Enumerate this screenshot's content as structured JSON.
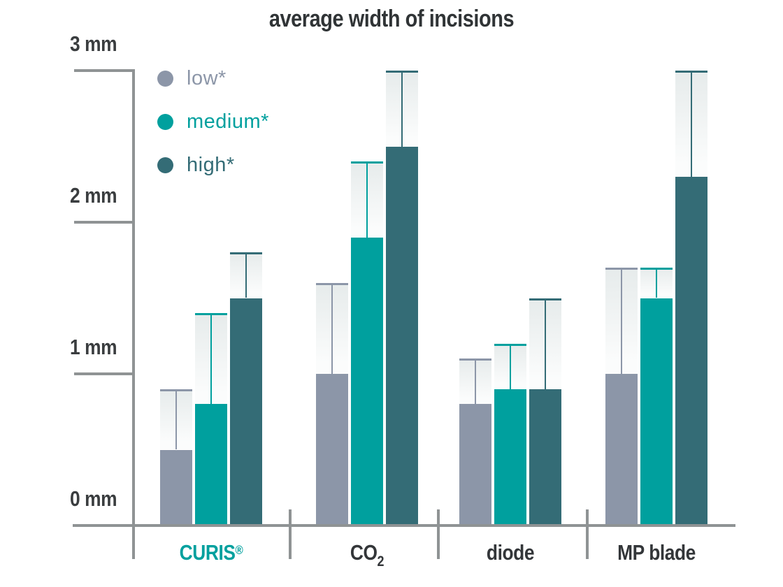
{
  "title": "average width of incisions",
  "chart_data": {
    "type": "bar",
    "title": "average width of incisions",
    "unit": "mm",
    "ylim": [
      0,
      3
    ],
    "yticks": [
      0,
      1,
      2,
      3
    ],
    "ytick_labels": [
      "0 mm",
      "1 mm",
      "2 mm",
      "3 mm"
    ],
    "grid": false,
    "legend_position": "top-left",
    "categories": [
      "CURIS®",
      "CO2",
      "diode",
      "MP blade"
    ],
    "series": [
      {
        "name": "low*",
        "color": "#8C96A8",
        "values": [
          0.5,
          1.0,
          0.8,
          1.0
        ],
        "whisker_top": [
          0.9,
          1.6,
          1.1,
          1.7
        ]
      },
      {
        "name": "medium*",
        "color": "#00A09E",
        "values": [
          0.8,
          1.9,
          0.9,
          1.5
        ],
        "whisker_top": [
          1.4,
          2.4,
          1.2,
          1.7
        ]
      },
      {
        "name": "high*",
        "color": "#346C76",
        "values": [
          1.5,
          2.5,
          0.9,
          2.3
        ],
        "whisker_top": [
          1.8,
          3.0,
          1.5,
          3.0
        ]
      }
    ]
  },
  "x_axis": {
    "groups": [
      {
        "label": "CURIS",
        "sup": "®",
        "color": "#00A09E",
        "slug": "curis"
      },
      {
        "label": "CO",
        "sub": "2",
        "slug": "co2"
      },
      {
        "label": "diode",
        "slug": "diode"
      },
      {
        "label": "MP blade",
        "slug": "mp-blade"
      }
    ]
  },
  "colors": {
    "axis": "#8F9394",
    "title_text": "#303436",
    "axis_label_text": "#3A3D3F",
    "group_label_text": "#333639",
    "whisker_fill_top": "#E6EBEB",
    "whisker_fill_bottom": "#FBFCFC",
    "background": "#FFFFFF"
  }
}
